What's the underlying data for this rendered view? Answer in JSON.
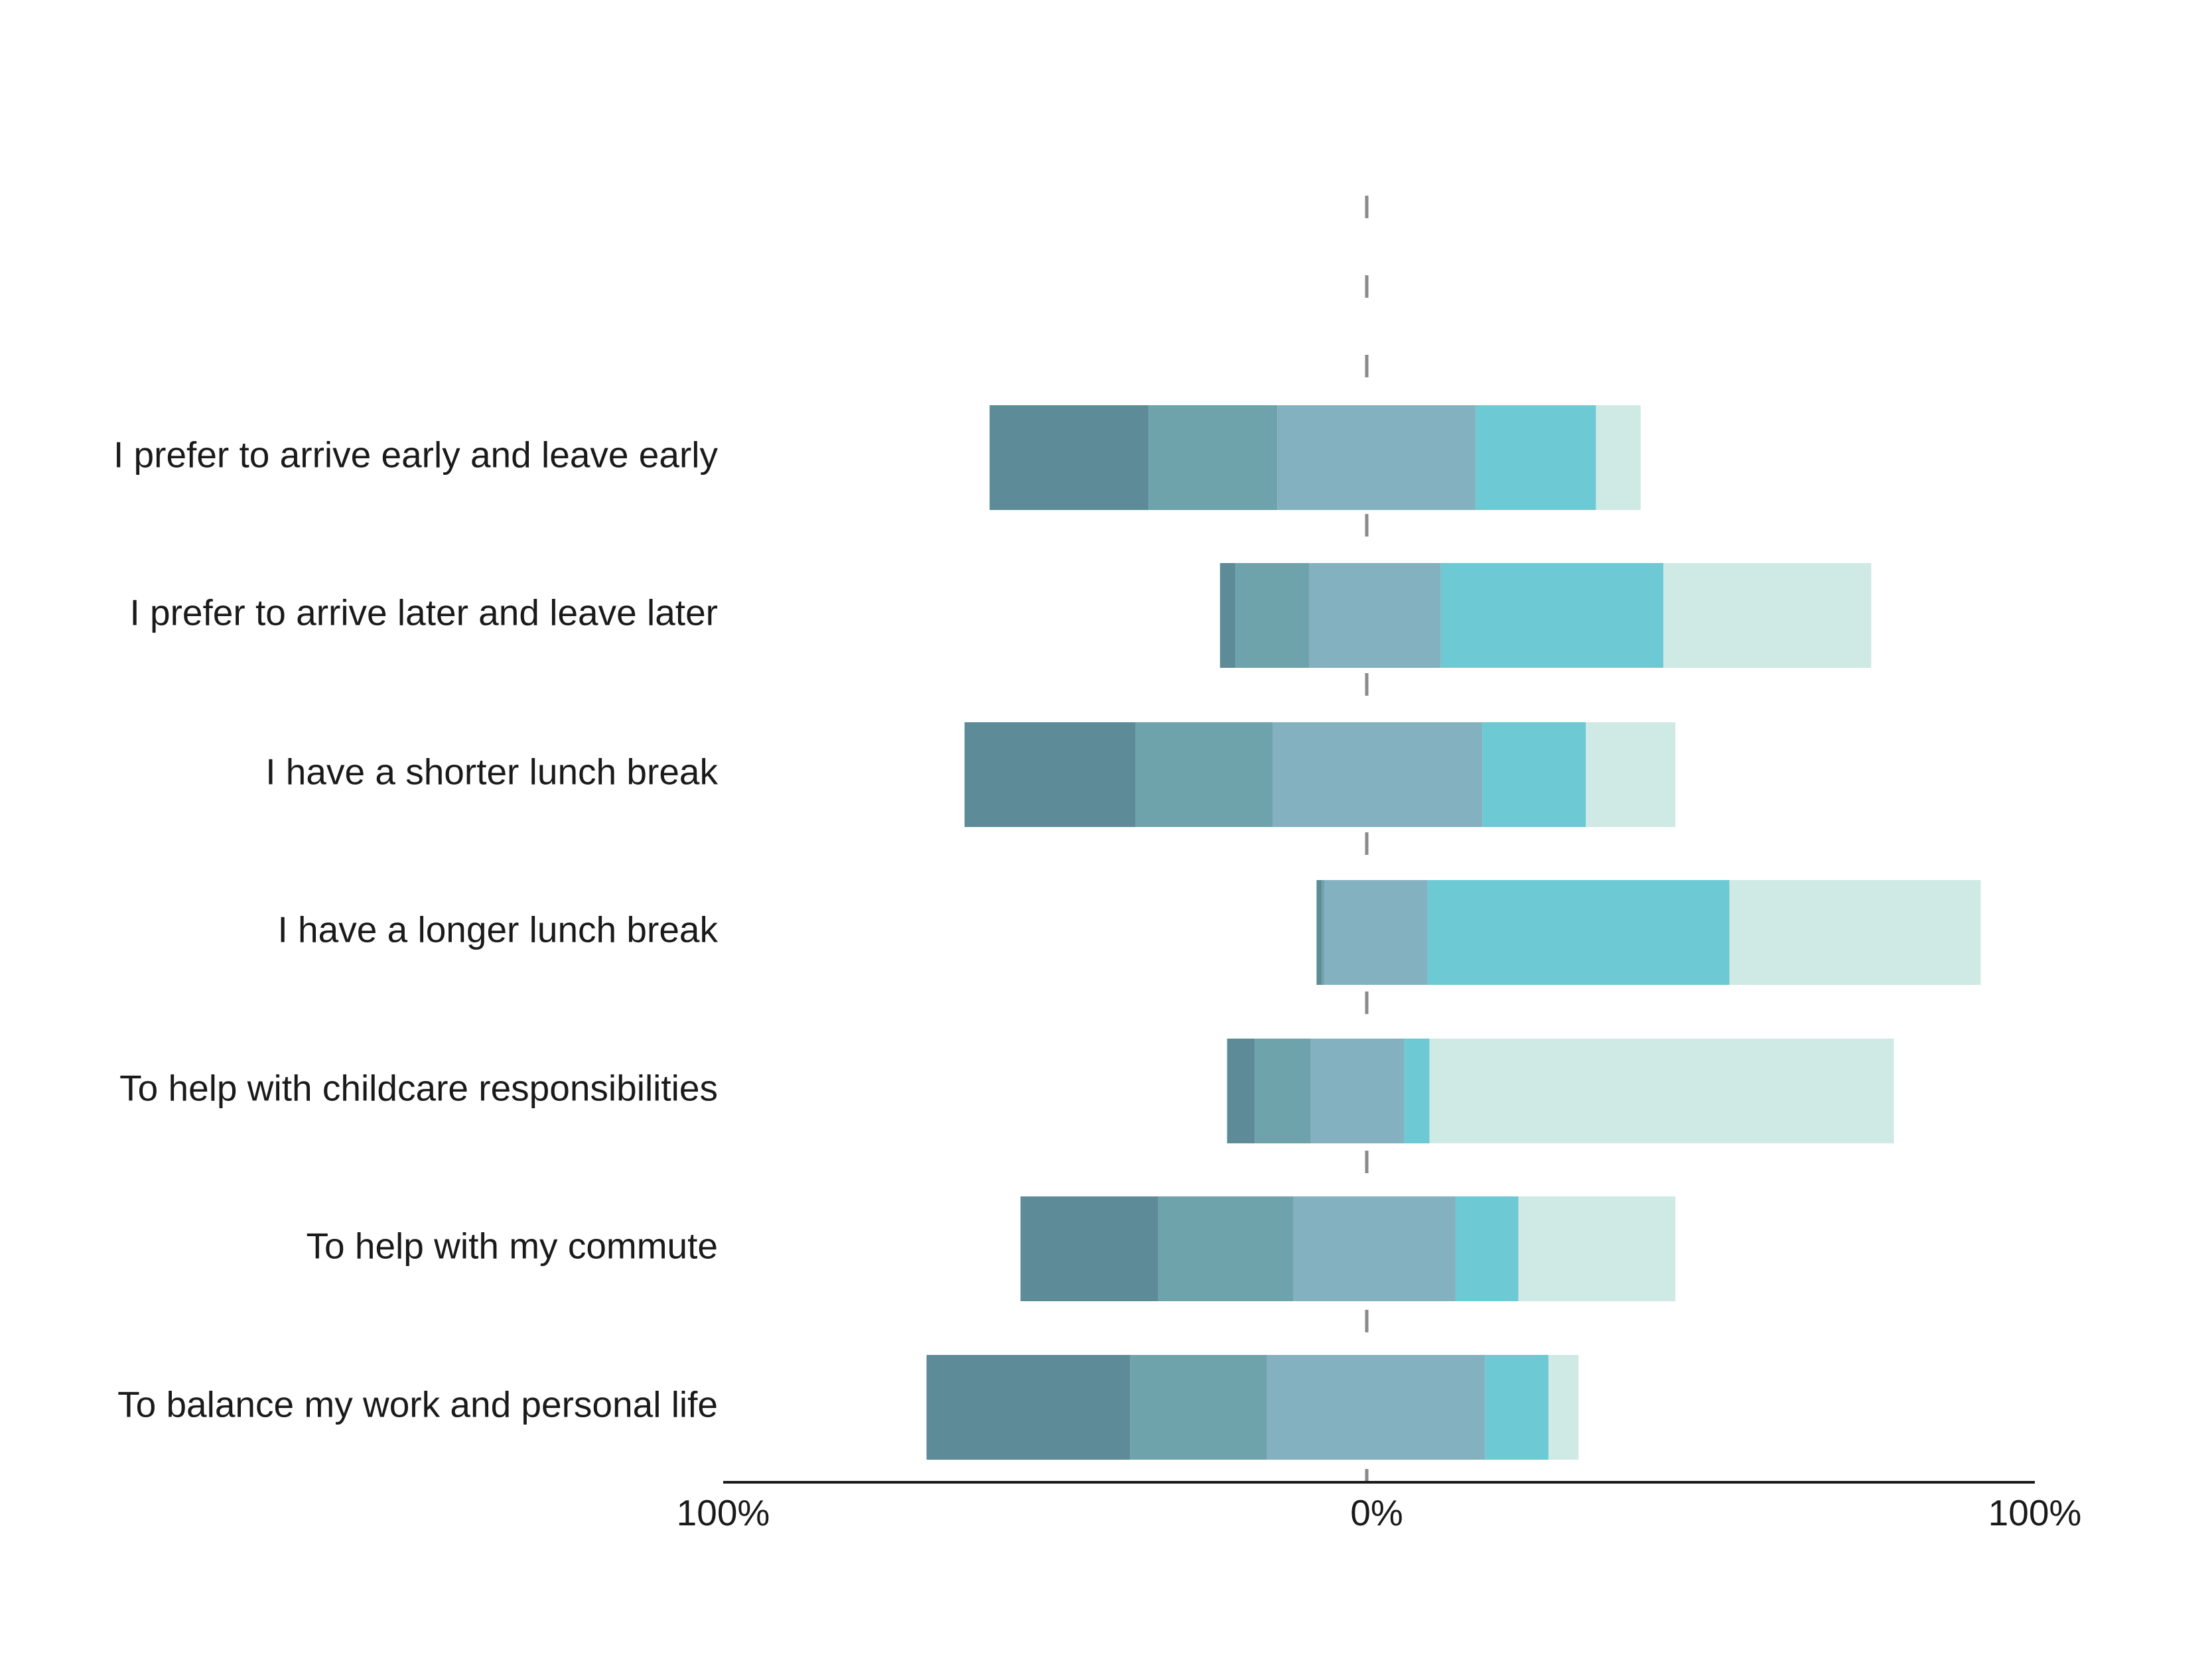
{
  "chart_data": {
    "type": "bar",
    "orientation": "horizontal",
    "stacking": "diverging",
    "title": "",
    "xlabel": "",
    "ylabel": "",
    "xlim": [
      -100,
      100
    ],
    "grid": false,
    "legend": "none",
    "categories": [
      "I prefer to arrive early and leave early",
      "I prefer to arrive later and leave later",
      "I have a shorter lunch break",
      "I have a longer lunch break",
      "To help with childcare responsibilities",
      "To help with my commute",
      "To balance my work and personal life"
    ],
    "series": [
      {
        "color": "#5d8b98",
        "values": [
          -24.7,
          -2.4,
          -26.6,
          -0.8,
          -4.3,
          -21.4,
          -31.6
        ]
      },
      {
        "color": "#6fa3ac",
        "values": [
          -20.0,
          -11.5,
          -21.3,
          -0.4,
          -8.7,
          -21.0,
          -21.3
        ]
      },
      {
        "color": "#84b1c0",
        "values": [
          -13.9,
          -8.9,
          -14.6,
          -6.6,
          -8.7,
          -11.4,
          -15.5
        ]
      },
      {
        "color": "#84b1c0",
        "values": [
          16.3,
          11.1,
          17.3,
          9.1,
          5.6,
          13.3,
          17.7
        ]
      },
      {
        "color": "#6dc9d3",
        "values": [
          18.0,
          33.3,
          15.5,
          45.2,
          3.8,
          9.4,
          9.5
        ]
      },
      {
        "color": "#cfe9e5",
        "values": [
          6.7,
          31.1,
          13.4,
          37.6,
          69.5,
          23.5,
          4.5
        ]
      }
    ],
    "x_tick_labels": [
      "100%",
      "0%",
      "100%"
    ]
  }
}
